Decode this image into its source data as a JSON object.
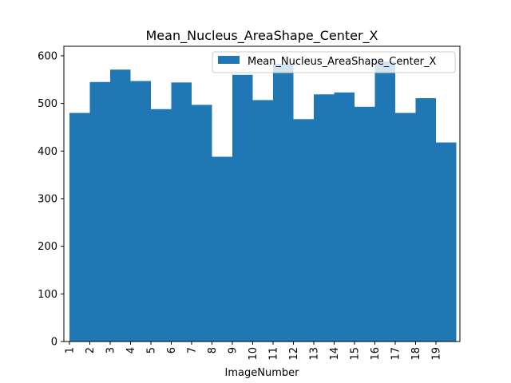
{
  "chart_data": {
    "type": "bar",
    "title": "Mean_Nucleus_AreaShape_Center_X",
    "xlabel": "ImageNumber",
    "ylabel": "",
    "categories": [
      "1",
      "2",
      "3",
      "4",
      "5",
      "6",
      "7",
      "8",
      "9",
      "10",
      "11",
      "12",
      "13",
      "14",
      "15",
      "16",
      "17",
      "18",
      "19"
    ],
    "series": [
      {
        "name": "Mean_Nucleus_AreaShape_Center_X",
        "color": "#1f77b4",
        "values": [
          480,
          545,
          571,
          547,
          488,
          544,
          497,
          388,
          560,
          507,
          583,
          467,
          519,
          523,
          493,
          588,
          480,
          511,
          418
        ]
      }
    ],
    "ylim": [
      0,
      620
    ],
    "yticks": [
      0,
      100,
      200,
      300,
      400,
      500,
      600
    ],
    "legend_position": "top-right",
    "grid": false
  }
}
